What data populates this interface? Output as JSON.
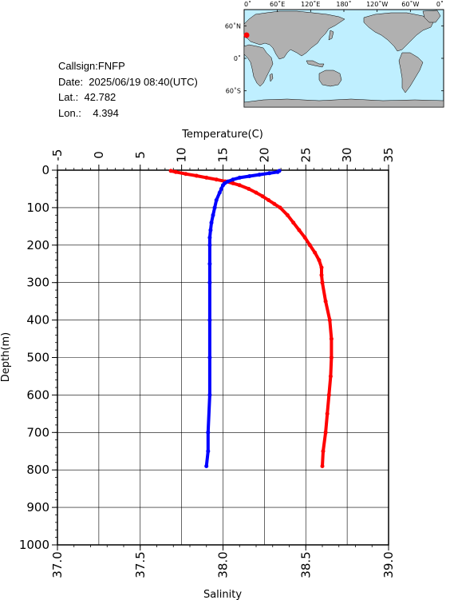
{
  "header": {
    "callsign": "Callsign:FNFP",
    "date": "Date:  2025/06/19 08:40(UTC)",
    "lat": "Lat.:  42.782",
    "lon": "Lon.:    4.394"
  },
  "map": {
    "lon_labels": [
      "0˚",
      "60˚E",
      "120˚E",
      "180˚",
      "120˚W",
      "60˚W",
      "0˚"
    ],
    "lat_labels": [
      "60˚N",
      "0˚",
      "60˚S"
    ],
    "ocean_color": "#bfefff",
    "land_color": "#b0b0b0",
    "station": {
      "lon": 4.394,
      "lat": 42.782,
      "color": "#ff0000"
    }
  },
  "chart_data": {
    "type": "line",
    "top_axis": {
      "label": "Temperature(C)",
      "range": [
        -5,
        35
      ],
      "ticks": [
        "-5",
        "0",
        "5",
        "10",
        "15",
        "20",
        "25",
        "30",
        "35"
      ]
    },
    "bottom_axis": {
      "label": "Salinity",
      "range": [
        37.0,
        39.0
      ],
      "ticks": [
        "37.0",
        "37.5",
        "38.0",
        "38.5",
        "39.0"
      ]
    },
    "y_axis": {
      "label": "Depth(m)",
      "range": [
        0,
        1000
      ],
      "inverted": true,
      "ticks": [
        "0",
        "100",
        "200",
        "300",
        "400",
        "500",
        "600",
        "700",
        "800",
        "900",
        "1000"
      ]
    },
    "grid": true,
    "series": [
      {
        "name": "Temperature",
        "axis": "top",
        "color": "#ff0000",
        "depth": [
          2,
          5,
          10,
          15,
          20,
          25,
          30,
          35,
          40,
          50,
          60,
          70,
          80,
          90,
          100,
          120,
          140,
          160,
          180,
          200,
          220,
          240,
          260,
          280,
          300,
          350,
          400,
          450,
          500,
          550,
          600,
          650,
          700,
          750,
          790
        ],
        "values": [
          8.7,
          9.3,
          10.5,
          11.8,
          13.0,
          14.2,
          15.3,
          16.2,
          17.0,
          18.1,
          19.0,
          19.8,
          20.5,
          21.2,
          21.9,
          22.8,
          23.5,
          24.2,
          24.9,
          25.5,
          26.1,
          26.6,
          26.9,
          26.9,
          27.0,
          27.4,
          27.9,
          28.1,
          28.1,
          28.0,
          27.8,
          27.6,
          27.4,
          27.1,
          27.0
        ]
      },
      {
        "name": "Salinity",
        "axis": "bottom",
        "color": "#0000ff",
        "depth": [
          2,
          5,
          8,
          12,
          16,
          20,
          25,
          30,
          35,
          40,
          50,
          60,
          80,
          100,
          120,
          140,
          160,
          180,
          200,
          250,
          300,
          400,
          500,
          600,
          700,
          750,
          790
        ],
        "values": [
          38.34,
          38.33,
          38.28,
          38.22,
          38.16,
          38.1,
          38.06,
          38.03,
          38.01,
          38.0,
          37.99,
          37.98,
          37.96,
          37.95,
          37.94,
          37.93,
          37.925,
          37.92,
          37.92,
          37.92,
          37.92,
          37.92,
          37.92,
          37.92,
          37.91,
          37.91,
          37.9
        ]
      }
    ]
  }
}
